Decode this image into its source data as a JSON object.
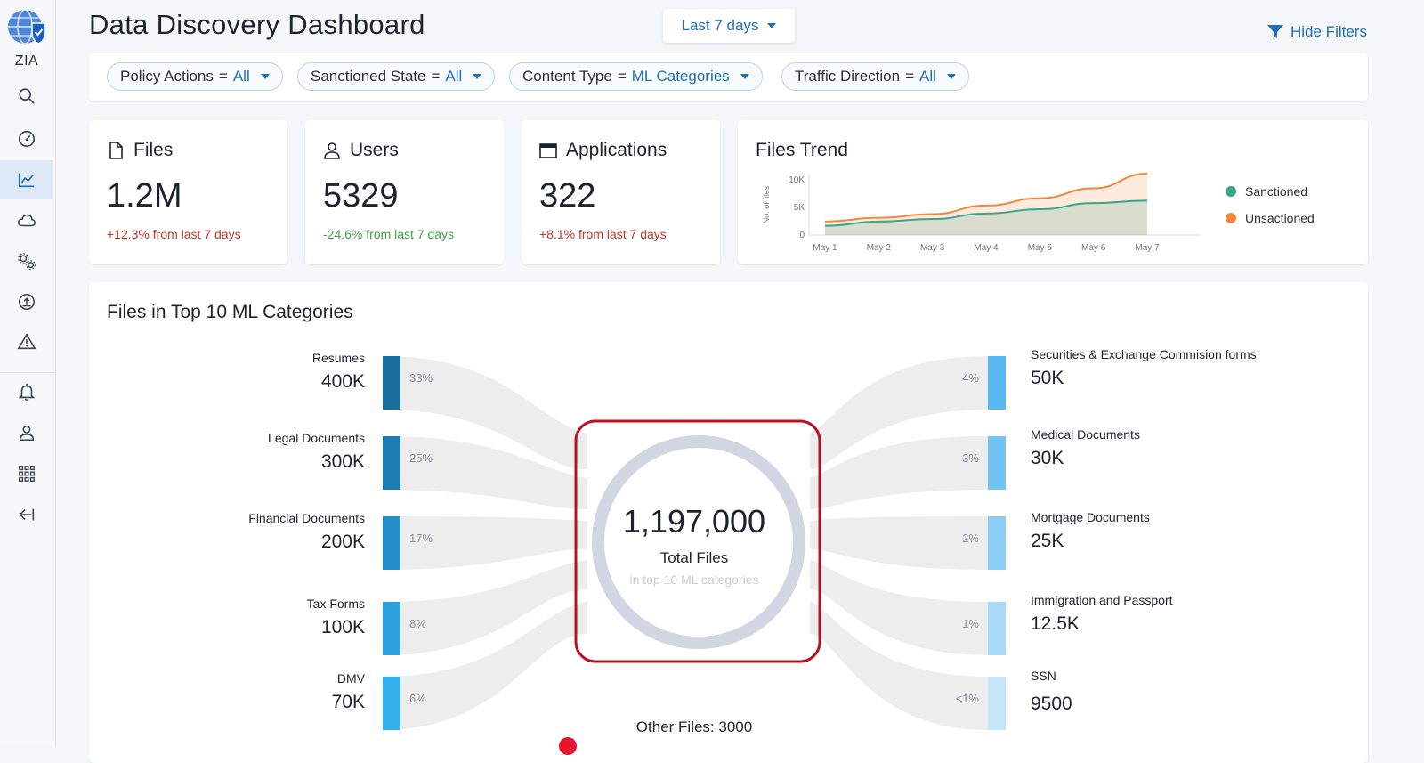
{
  "app": {
    "name": "ZIA"
  },
  "sidebar": {
    "items": [
      {
        "icon": "search-icon"
      },
      {
        "icon": "dashboard-gauge-icon"
      },
      {
        "icon": "analytics-chart-icon",
        "active": true
      },
      {
        "icon": "cloud-icon"
      },
      {
        "icon": "settings-gears-icon"
      },
      {
        "icon": "upload-icon"
      },
      {
        "icon": "alert-triangle-icon"
      },
      {
        "icon": "bell-icon"
      },
      {
        "icon": "user-icon"
      },
      {
        "icon": "apps-grid-icon"
      },
      {
        "icon": "collapse-arrow-icon"
      }
    ]
  },
  "header": {
    "title": "Data Discovery Dashboard",
    "date_range": "Last 7 days",
    "hide_filters": "Hide Filters"
  },
  "filters": [
    {
      "label": "Policy Actions",
      "eq": "=",
      "value": "All"
    },
    {
      "label": "Sanctioned State",
      "eq": "=",
      "value": "All"
    },
    {
      "label": "Content Type",
      "eq": "=",
      "value": "ML Categories"
    },
    {
      "label": "Traffic Direction",
      "eq": "=",
      "value": "All"
    }
  ],
  "stats": [
    {
      "title": "Files",
      "value": "1.2M",
      "change": "+12.3% from last 7 days",
      "trend": "up"
    },
    {
      "title": "Users",
      "value": "5329",
      "change": "-24.6% from last 7 days",
      "trend": "down"
    },
    {
      "title": "Applications",
      "value": "322",
      "change": "+8.1% from last 7 days",
      "trend": "up"
    }
  ],
  "files_trend": {
    "title": "Files Trend",
    "ylabel": "No. of files",
    "yticks": [
      "10K",
      "5K",
      "0"
    ],
    "legend": [
      {
        "name": "Sanctioned",
        "color": "#3aa58c"
      },
      {
        "name": "Unsactioned",
        "color": "#f0883e"
      }
    ]
  },
  "chart_data": {
    "type": "area",
    "x": [
      "May 1",
      "May 2",
      "May 3",
      "May 4",
      "May 5",
      "May 6",
      "May 7"
    ],
    "ylim": [
      0,
      10000
    ],
    "series": [
      {
        "name": "Sanctioned",
        "values": [
          1500,
          2200,
          2600,
          3500,
          4200,
          5200,
          5600
        ]
      },
      {
        "name": "Unsactioned",
        "values": [
          2200,
          2800,
          3400,
          4800,
          6000,
          7600,
          10000
        ]
      }
    ]
  },
  "ml_categories": {
    "title": "Files in Top 10 ML Categories",
    "total": "1,197,000",
    "total_label": "Total Files",
    "total_sub": "in top 10 ML categories",
    "other_files": "Other Files: 3000",
    "left": [
      {
        "name": "Resumes",
        "value": "400K",
        "pct": "33%",
        "color": "#1a6e9e"
      },
      {
        "name": "Legal Documents",
        "value": "300K",
        "pct": "25%",
        "color": "#1f7db5"
      },
      {
        "name": "Financial Documents",
        "value": "200K",
        "pct": "17%",
        "color": "#238ec9"
      },
      {
        "name": "Tax Forms",
        "value": "100K",
        "pct": "8%",
        "color": "#2ba0dd"
      },
      {
        "name": "DMV",
        "value": "70K",
        "pct": "6%",
        "color": "#32b0ec"
      }
    ],
    "right": [
      {
        "name": "Securities & Exchange Commision forms",
        "value": "50K",
        "pct": "4%",
        "color": "#5ab8f0"
      },
      {
        "name": "Medical Documents",
        "value": "30K",
        "pct": "3%",
        "color": "#72c2f2"
      },
      {
        "name": "Mortgage Documents",
        "value": "25K",
        "pct": "2%",
        "color": "#8ccdf4"
      },
      {
        "name": "Immigration and Passport",
        "value": "12.5K",
        "pct": "1%",
        "color": "#a8d9f6"
      },
      {
        "name": "SSN",
        "value": "9500",
        "pct": "<1%",
        "color": "#c4e5f8"
      }
    ]
  }
}
